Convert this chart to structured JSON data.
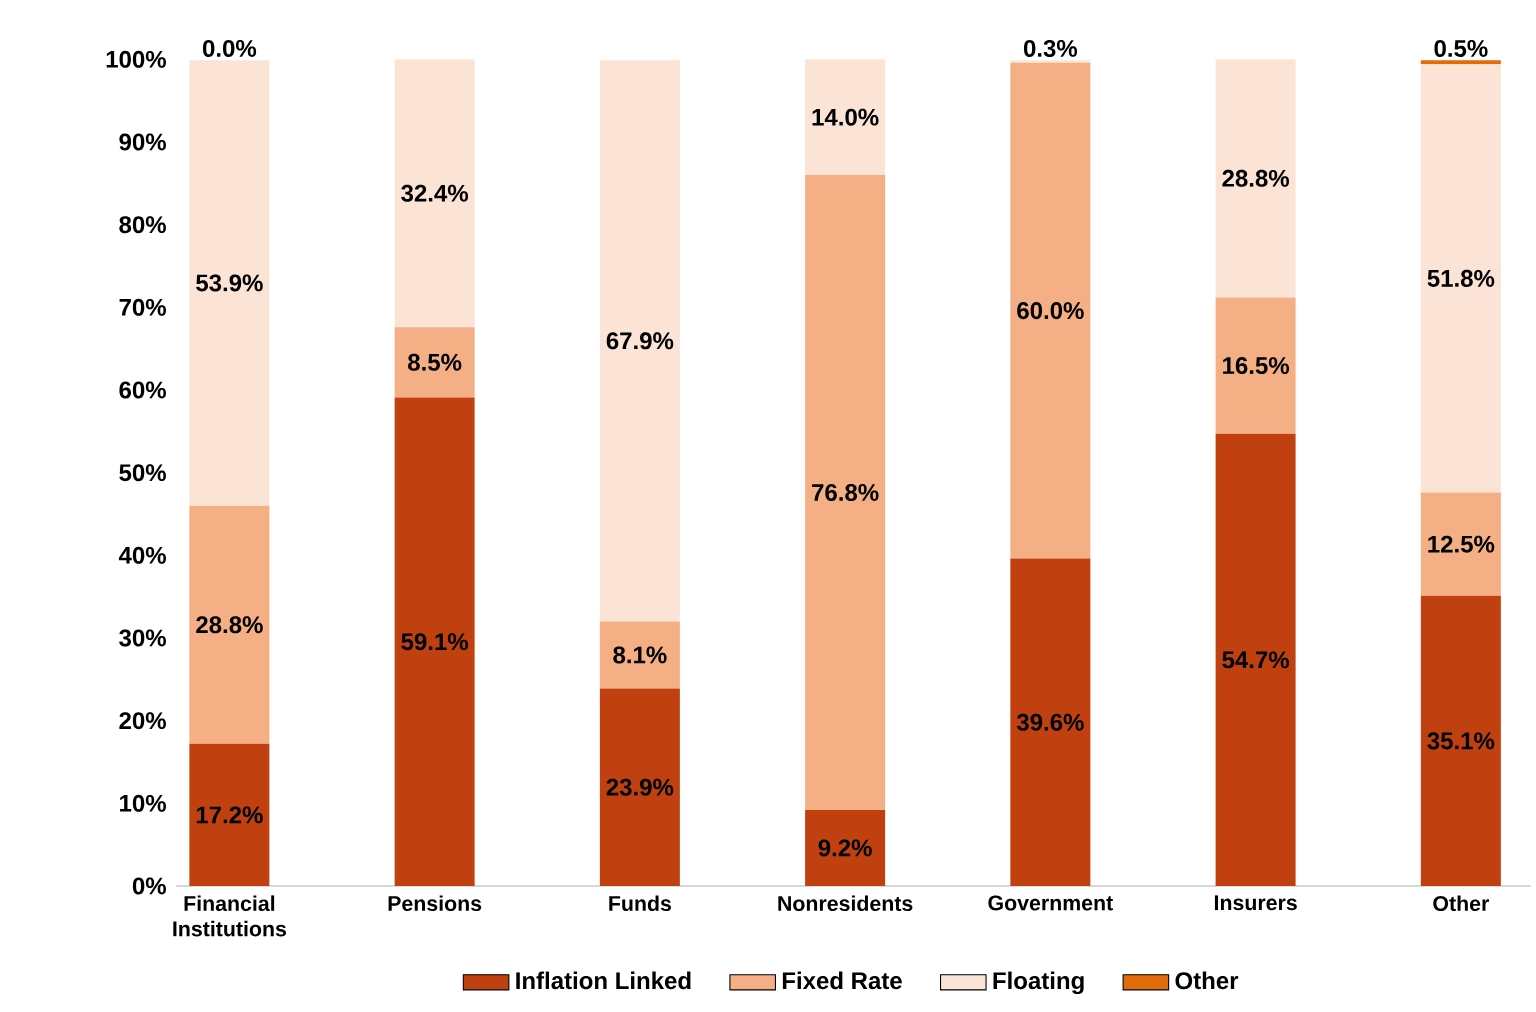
{
  "chart_data": {
    "type": "bar",
    "stacked": true,
    "categories": [
      "Financial Institutions",
      "Pensions",
      "Funds",
      "Nonresidents",
      "Government",
      "Insurers",
      "Other"
    ],
    "series": [
      {
        "name": "Inflation Linked",
        "color": "#c0410f",
        "values": [
          17.2,
          59.1,
          23.9,
          9.2,
          39.6,
          54.7,
          35.1
        ],
        "value_labels": [
          "17.2%",
          "59.1%",
          "23.9%",
          "9.2%",
          "39.6%",
          "54.7%",
          "35.1%"
        ]
      },
      {
        "name": "Fixed Rate",
        "color": "#f4af84",
        "values": [
          28.8,
          8.5,
          8.1,
          76.8,
          60.0,
          16.5,
          12.5
        ],
        "value_labels": [
          "28.8%",
          "8.5%",
          "8.1%",
          "76.8%",
          "60.0%",
          "16.5%",
          "12.5%"
        ]
      },
      {
        "name": "Floating",
        "color": "#fbe4d6",
        "values": [
          53.9,
          32.4,
          67.9,
          14.0,
          0.3,
          28.8,
          51.8
        ],
        "value_labels": [
          "53.9%",
          "32.4%",
          "67.9%",
          "14.0%",
          "0.3%",
          "28.8%",
          "51.8%"
        ]
      },
      {
        "name": "Other",
        "color": "#e36c0a",
        "values": [
          0.0,
          0.0,
          0.0,
          0.0,
          0.0,
          0.0,
          0.5
        ],
        "value_labels": [
          "0.0%",
          null,
          null,
          null,
          null,
          null,
          "0.5%"
        ]
      }
    ],
    "ylim": [
      0,
      100
    ],
    "yticks": [
      {
        "value": 0,
        "label": "0%"
      },
      {
        "value": 10,
        "label": "10%"
      },
      {
        "value": 20,
        "label": "20%"
      },
      {
        "value": 30,
        "label": "30%"
      },
      {
        "value": 40,
        "label": "40%"
      },
      {
        "value": 50,
        "label": "50%"
      },
      {
        "value": 60,
        "label": "60%"
      },
      {
        "value": 70,
        "label": "70%"
      },
      {
        "value": 80,
        "label": "80%"
      },
      {
        "value": 90,
        "label": "90%"
      },
      {
        "value": 100,
        "label": "100%"
      }
    ],
    "legend": "bottom"
  }
}
